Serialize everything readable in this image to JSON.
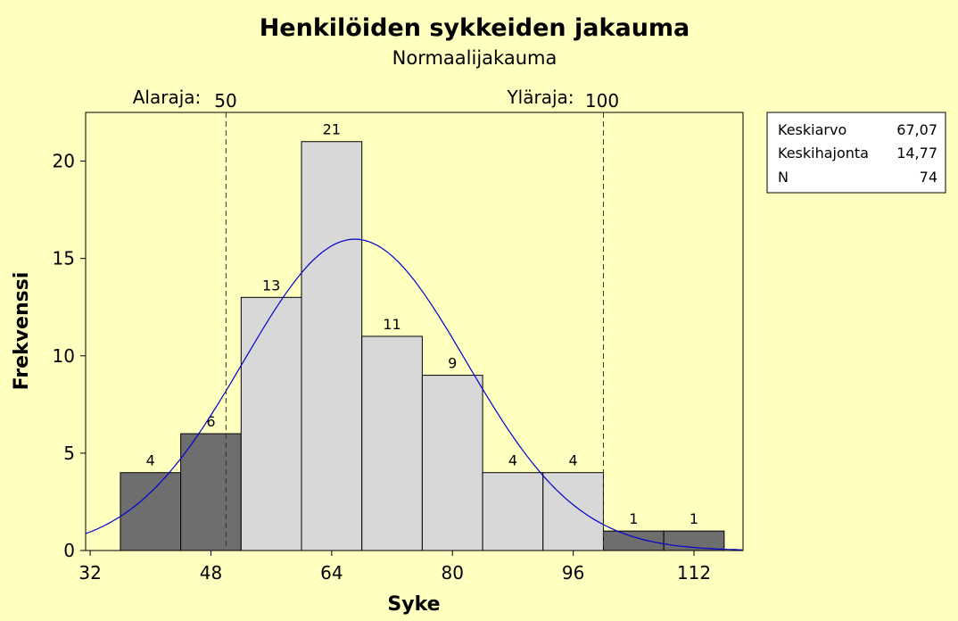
{
  "chart_data": {
    "type": "bar",
    "title": "Henkilöiden sykkeiden jakauma",
    "subtitle": "Normaalijakauma",
    "xlabel": "Syke",
    "ylabel": "Frekvenssi",
    "xlim": [
      31.4,
      118.5
    ],
    "ylim": [
      0,
      22.5
    ],
    "xticks": [
      "32",
      "48",
      "64",
      "80",
      "96",
      "112"
    ],
    "yticks": [
      "0",
      "5",
      "10",
      "15",
      "20"
    ],
    "bin_edges": [
      36,
      44,
      52,
      60,
      68,
      76,
      84,
      92,
      100,
      108,
      116
    ],
    "values": [
      4,
      6,
      13,
      21,
      11,
      9,
      4,
      4,
      1,
      1
    ],
    "outside_limits": [
      true,
      true,
      false,
      false,
      false,
      false,
      false,
      false,
      true,
      true
    ],
    "colors": {
      "inside": "#D8D8D8",
      "outside": "#6E6E6E",
      "curve": "#0000CC",
      "background": "#FFFFC0"
    },
    "limits": {
      "lower": {
        "label": "Alaraja:",
        "value": "50",
        "x": 50
      },
      "upper": {
        "label": "Yläraja:",
        "value": "100",
        "x": 100
      }
    },
    "normal_curve": {
      "mean": 67.07,
      "sd": 14.77,
      "n": 74,
      "bin_width": 8
    },
    "stats": [
      {
        "label": "Keskiarvo",
        "value": "67,07"
      },
      {
        "label": "Keskihajonta",
        "value": "14,77"
      },
      {
        "label": "N",
        "value": "74"
      }
    ],
    "grid": false
  }
}
